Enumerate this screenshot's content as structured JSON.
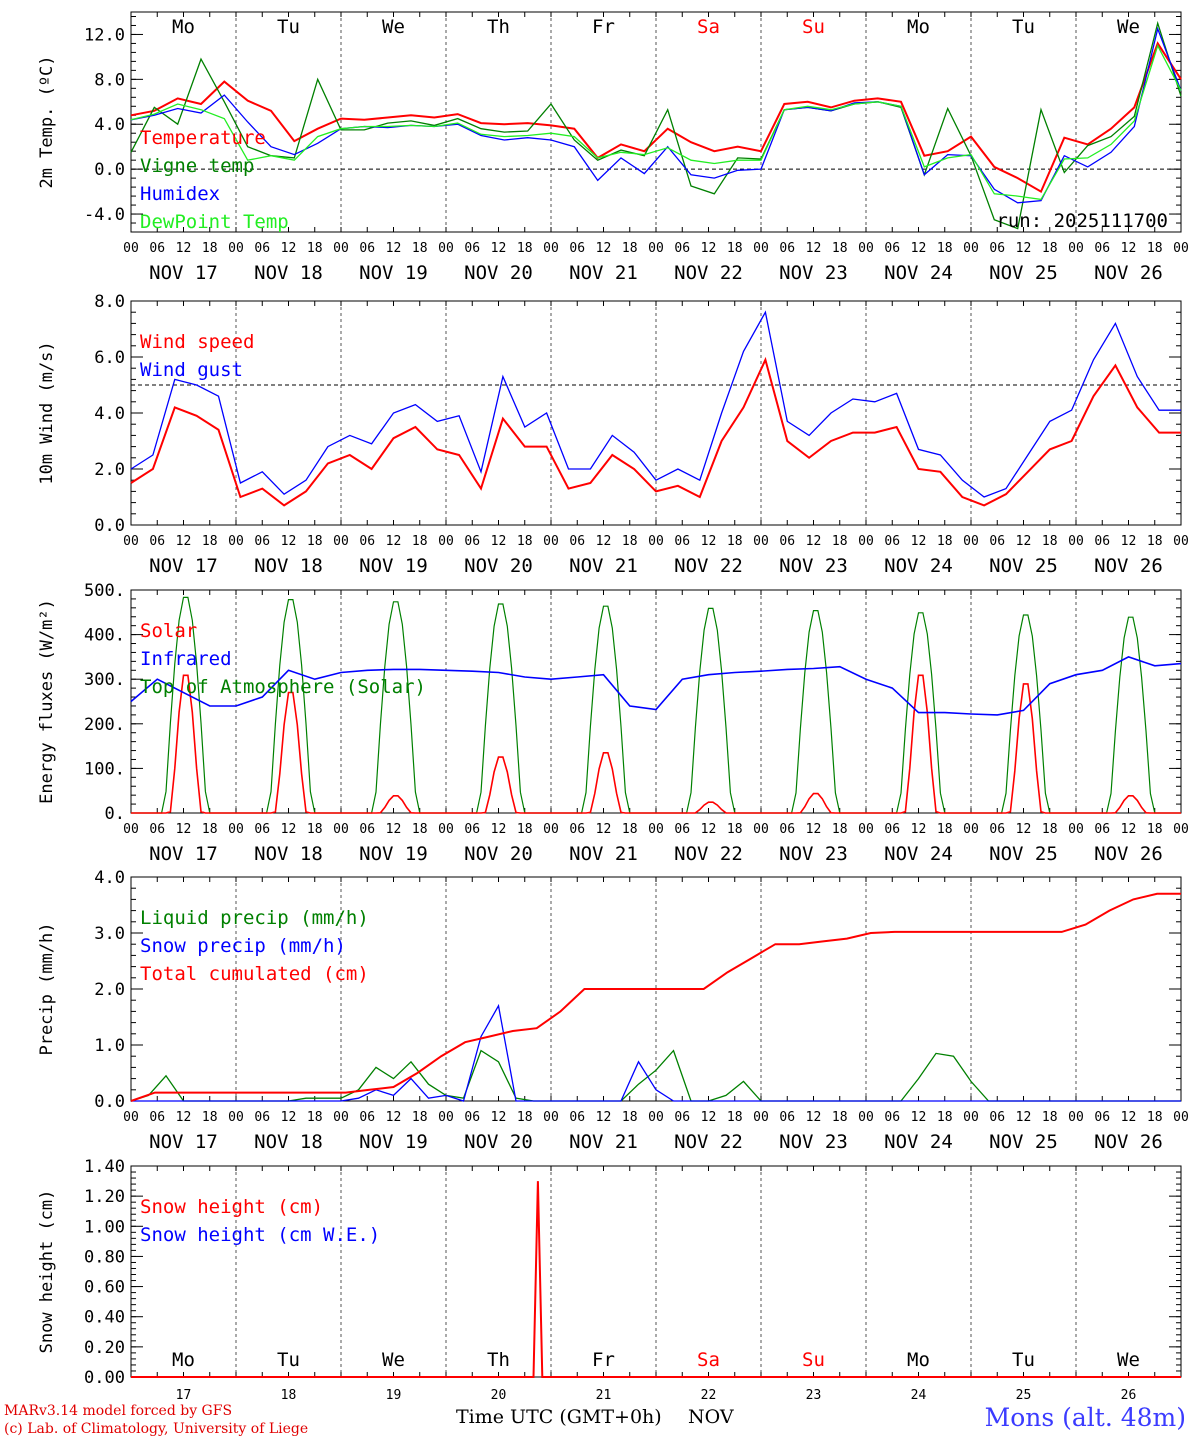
{
  "footer": {
    "credit_line1": "MARv3.14 model forced by GFS",
    "credit_line2": "(c) Lab. of Climatology, University of Liege",
    "time_label": "Time UTC (GMT+0h)",
    "month_label": "NOV",
    "station": "Mons (alt. 48m)"
  },
  "colors": {
    "red": "#ff0000",
    "green": "#008000",
    "blue": "#0000ff",
    "lightgreen": "#22ee22",
    "weekend": "#ff0000"
  },
  "x_axis": {
    "hour_ticks": [
      "00",
      "06",
      "12",
      "18"
    ],
    "dates": [
      "NOV 17",
      "NOV 18",
      "NOV 19",
      "NOV 20",
      "NOV 21",
      "NOV 22",
      "NOV 23",
      "NOV 24",
      "NOV 25",
      "NOV 26"
    ],
    "weekdays": [
      "Mo",
      "Tu",
      "We",
      "Th",
      "Fr",
      "Sa",
      "Su",
      "Mo",
      "Tu",
      "We"
    ],
    "weekend_flags": [
      false,
      false,
      false,
      false,
      false,
      true,
      true,
      false,
      false,
      false
    ],
    "bottom_day_numbers": [
      "17",
      "18",
      "19",
      "20",
      "21",
      "22",
      "23",
      "24",
      "25",
      "26"
    ]
  },
  "chart_data": [
    {
      "id": "temp",
      "type": "line",
      "ylabel": "2m Temp. (ºC)",
      "ylim": [
        -5.6,
        14.0
      ],
      "yticks": [
        -4.0,
        0.0,
        4.0,
        8.0,
        12.0
      ],
      "ytick_labels": [
        "-4.0",
        "0.0",
        "4.0",
        "8.0",
        "12.0"
      ],
      "dashed_ref": 0.0,
      "annotation": "run: 2025111700",
      "x_hours_step": 6,
      "series": [
        {
          "name": "Temperature",
          "color": "red",
          "values": [
            4.8,
            5.2,
            6.3,
            5.8,
            7.8,
            6.1,
            5.2,
            2.5,
            3.6,
            4.5,
            4.4,
            4.6,
            4.8,
            4.6,
            4.9,
            4.1,
            4.0,
            4.1,
            3.9,
            3.6,
            1.0,
            2.2,
            1.6,
            3.6,
            2.4,
            1.6,
            2.0,
            1.6,
            5.8,
            6.0,
            5.5,
            6.1,
            6.3,
            6.0,
            1.2,
            1.6,
            2.9,
            0.2,
            -0.8,
            -2.0,
            2.8,
            2.2,
            3.6,
            5.5,
            11.2,
            8.0
          ]
        },
        {
          "name": "Vigne temp",
          "color": "green",
          "values": [
            1.5,
            5.5,
            4.0,
            9.8,
            6.0,
            2.0,
            1.2,
            1.0,
            8.0,
            3.5,
            3.5,
            4.1,
            4.3,
            3.9,
            4.5,
            3.6,
            3.3,
            3.4,
            5.8,
            2.6,
            0.8,
            1.7,
            1.2,
            5.3,
            -1.5,
            -2.2,
            1.0,
            0.9,
            5.3,
            5.5,
            5.2,
            5.8,
            6.0,
            5.5,
            -0.5,
            5.4,
            1.2,
            -4.5,
            -5.3,
            5.3,
            -0.3,
            2.1,
            2.9,
            4.7,
            13.0,
            6.5
          ]
        },
        {
          "name": "Humidex",
          "color": "blue",
          "values": [
            4.4,
            4.8,
            5.4,
            5.0,
            6.6,
            4.2,
            2.0,
            1.3,
            2.3,
            3.6,
            3.8,
            3.7,
            3.9,
            3.8,
            4.0,
            3.0,
            2.6,
            2.8,
            2.6,
            2.0,
            -1.0,
            1.0,
            -0.4,
            2.0,
            -0.5,
            -0.8,
            -0.1,
            0.0,
            5.3,
            5.5,
            5.2,
            5.9,
            6.0,
            5.6,
            -0.5,
            1.3,
            1.2,
            -1.8,
            -3.0,
            -2.8,
            1.2,
            0.2,
            1.5,
            3.8,
            12.5,
            7.0
          ]
        },
        {
          "name": "DewPoint Temp",
          "color": "lightgreen",
          "values": [
            4.4,
            4.9,
            5.8,
            5.3,
            4.5,
            0.8,
            1.2,
            0.8,
            2.9,
            3.6,
            3.8,
            3.8,
            3.9,
            3.8,
            4.1,
            3.1,
            2.9,
            3.0,
            3.2,
            2.9,
            1.0,
            1.5,
            1.3,
            1.9,
            0.8,
            0.5,
            0.8,
            0.8,
            5.3,
            5.6,
            5.3,
            5.8,
            6.0,
            5.6,
            0.2,
            1.0,
            1.3,
            -2.2,
            -2.4,
            -2.7,
            0.9,
            1.0,
            2.2,
            4.3,
            11.0,
            7.0
          ]
        }
      ],
      "legend": [
        "Temperature",
        "Vigne temp",
        "Humidex",
        "DewPoint Temp"
      ]
    },
    {
      "id": "wind",
      "type": "line",
      "ylabel": "10m Wind (m/s)",
      "ylim": [
        0.0,
        8.0
      ],
      "yticks": [
        0.0,
        2.0,
        4.0,
        6.0,
        8.0
      ],
      "ytick_labels": [
        "0.0",
        "2.0",
        "4.0",
        "6.0",
        "8.0"
      ],
      "dashed_ref": 5.0,
      "x_hours_step": 6,
      "series": [
        {
          "name": "Wind speed",
          "color": "red",
          "values": [
            1.5,
            2.0,
            4.2,
            3.9,
            3.4,
            1.0,
            1.3,
            0.7,
            1.2,
            2.2,
            2.5,
            2.0,
            3.1,
            3.5,
            2.7,
            2.5,
            1.3,
            3.8,
            2.8,
            2.8,
            1.3,
            1.5,
            2.5,
            2.0,
            1.2,
            1.4,
            1.0,
            3.0,
            4.2,
            5.9,
            3.0,
            2.4,
            3.0,
            3.3,
            3.3,
            3.5,
            2.0,
            1.9,
            1.0,
            0.7,
            1.1,
            1.9,
            2.7,
            3.0,
            4.6,
            5.7,
            4.2,
            3.3,
            3.3
          ]
        },
        {
          "name": "Wind gust",
          "color": "blue",
          "values": [
            2.0,
            2.5,
            5.2,
            5.0,
            4.6,
            1.5,
            1.9,
            1.1,
            1.6,
            2.8,
            3.2,
            2.9,
            4.0,
            4.3,
            3.7,
            3.9,
            1.9,
            5.3,
            3.5,
            4.0,
            2.0,
            2.0,
            3.2,
            2.6,
            1.6,
            2.0,
            1.6,
            4.0,
            6.2,
            7.6,
            3.7,
            3.2,
            4.0,
            4.5,
            4.4,
            4.7,
            2.7,
            2.5,
            1.6,
            1.0,
            1.3,
            2.5,
            3.7,
            4.1,
            5.9,
            7.2,
            5.3,
            4.1,
            4.1
          ]
        }
      ],
      "legend": [
        "Wind speed",
        "Wind gust"
      ]
    },
    {
      "id": "flux",
      "type": "line",
      "ylabel": "Energy fluxes (W/m²)",
      "ylim": [
        0,
        500
      ],
      "yticks": [
        0,
        100,
        200,
        300,
        400,
        500
      ],
      "ytick_labels": [
        "0.",
        "100.",
        "200.",
        "300.",
        "400.",
        "500."
      ],
      "x_hours_step": 6,
      "solar_peaks": [
        320,
        280,
        40,
        130,
        140,
        25,
        45,
        320,
        300,
        40
      ],
      "toa_peaks": [
        490,
        485,
        480,
        475,
        470,
        465,
        460,
        455,
        450,
        445
      ],
      "infrared_daily": [
        [
          250,
          300,
          270,
          240
        ],
        [
          240,
          260,
          320,
          300
        ],
        [
          315,
          320,
          322,
          322
        ],
        [
          320,
          318,
          315,
          305
        ],
        [
          300,
          305,
          310,
          240
        ],
        [
          232,
          300,
          310,
          315
        ],
        [
          318,
          322,
          324,
          328
        ],
        [
          300,
          280,
          225,
          225
        ],
        [
          222,
          220,
          230,
          290
        ],
        [
          310,
          320,
          350,
          330
        ]
      ],
      "series_names": [
        "Solar",
        "Infrared",
        "Top of Atmosphere (Solar)"
      ],
      "series_colors": [
        "red",
        "blue",
        "green"
      ],
      "legend": [
        "Solar",
        "Infrared",
        "Top of Atmosphere (Solar)"
      ]
    },
    {
      "id": "precip",
      "type": "line",
      "ylabel": "Precip (mm/h)",
      "ylim": [
        0.0,
        4.0
      ],
      "yticks": [
        0.0,
        1.0,
        2.0,
        3.0,
        4.0
      ],
      "ytick_labels": [
        "0.0",
        "1.0",
        "2.0",
        "3.0",
        "4.0"
      ],
      "x_hours_step": 6,
      "series": [
        {
          "name": "Liquid precip (mm/h)",
          "color": "green",
          "values": [
            0,
            0.1,
            0.45,
            0,
            0,
            0,
            0,
            0,
            0,
            0,
            0.05,
            0.05,
            0.05,
            0.2,
            0.6,
            0.4,
            0.7,
            0.3,
            0.1,
            0.05,
            0.9,
            0.7,
            0.05,
            0,
            0,
            0,
            0,
            0,
            0,
            0.3,
            0.55,
            0.9,
            0,
            0,
            0.1,
            0.35,
            0,
            0,
            0,
            0,
            0,
            0,
            0,
            0,
            0,
            0.4,
            0.85,
            0.8,
            0.35,
            0,
            0,
            0,
            0,
            0,
            0,
            0,
            0,
            0,
            0,
            0,
            0
          ]
        },
        {
          "name": "Snow precip (mm/h)",
          "color": "blue",
          "values": [
            0,
            0,
            0,
            0,
            0,
            0,
            0,
            0,
            0,
            0,
            0,
            0,
            0,
            0.05,
            0.2,
            0.1,
            0.4,
            0.05,
            0.1,
            0,
            1.15,
            1.7,
            0,
            0,
            0,
            0,
            0,
            0,
            0,
            0.7,
            0.2,
            0,
            0,
            0,
            0,
            0,
            0,
            0,
            0,
            0,
            0,
            0,
            0,
            0,
            0,
            0,
            0,
            0,
            0,
            0,
            0,
            0,
            0,
            0,
            0,
            0,
            0,
            0,
            0,
            0,
            0
          ]
        },
        {
          "name": "Total cumulated (cm)",
          "color": "red",
          "values": [
            0,
            0.15,
            0.15,
            0.15,
            0.15,
            0.15,
            0.15,
            0.15,
            0.15,
            0.15,
            0.2,
            0.25,
            0.5,
            0.8,
            1.05,
            1.15,
            1.25,
            1.3,
            1.6,
            2.0,
            2.0,
            2.0,
            2.0,
            2.0,
            2.0,
            2.3,
            2.55,
            2.8,
            2.8,
            2.85,
            2.9,
            3.0,
            3.02,
            3.02,
            3.02,
            3.02,
            3.02,
            3.02,
            3.02,
            3.02,
            3.15,
            3.4,
            3.6,
            3.7,
            3.7
          ]
        }
      ],
      "legend": [
        "Liquid precip (mm/h)",
        "Snow precip (mm/h)",
        "Total cumulated (cm)"
      ]
    },
    {
      "id": "snow",
      "type": "line",
      "ylabel": "Snow height (cm)",
      "ylim": [
        0.0,
        1.4
      ],
      "yticks": [
        0.0,
        0.2,
        0.4,
        0.6,
        0.8,
        1.0,
        1.2,
        1.4
      ],
      "ytick_labels": [
        "0.00",
        "0.20",
        "0.40",
        "0.60",
        "0.80",
        "1.00",
        "1.20",
        "1.40"
      ],
      "x_hours_step": 6,
      "spike_hour": 93,
      "spike_value": 1.3,
      "series_names": [
        "Snow height (cm)",
        "Snow height (cm W.E.)"
      ],
      "legend": [
        "Snow height (cm)",
        "Snow height (cm W.E.)"
      ]
    }
  ]
}
